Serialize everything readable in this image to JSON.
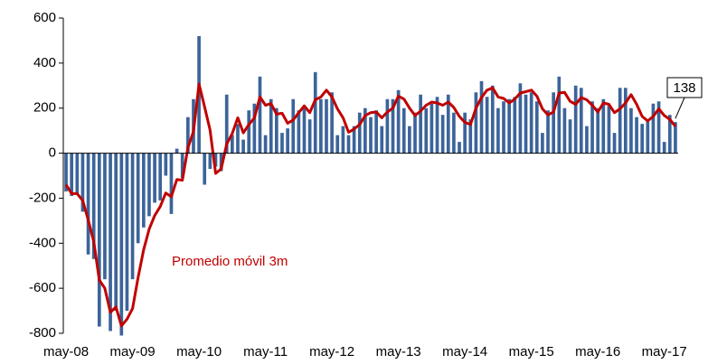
{
  "chart_data": {
    "type": "bar_line",
    "categories": [
      "may-08",
      null,
      null,
      null,
      null,
      null,
      null,
      null,
      null,
      null,
      null,
      null,
      "may-09",
      null,
      null,
      null,
      null,
      null,
      null,
      null,
      null,
      null,
      null,
      null,
      "may-10",
      null,
      null,
      null,
      null,
      null,
      null,
      null,
      null,
      null,
      null,
      null,
      "may-11",
      null,
      null,
      null,
      null,
      null,
      null,
      null,
      null,
      null,
      null,
      null,
      "may-12",
      null,
      null,
      null,
      null,
      null,
      null,
      null,
      null,
      null,
      null,
      null,
      "may-13",
      null,
      null,
      null,
      null,
      null,
      null,
      null,
      null,
      null,
      null,
      null,
      "may-14",
      null,
      null,
      null,
      null,
      null,
      null,
      null,
      null,
      null,
      null,
      null,
      "may-15",
      null,
      null,
      null,
      null,
      null,
      null,
      null,
      null,
      null,
      null,
      null,
      "may-16",
      null,
      null,
      null,
      null,
      null,
      null,
      null,
      null,
      null,
      null,
      null,
      "may-17",
      null,
      null
    ],
    "series": [
      {
        "type": "bar",
        "color": "#3c6499",
        "values": [
          -170,
          -190,
          -180,
          -260,
          -450,
          -470,
          -770,
          -560,
          -790,
          -700,
          -810,
          -700,
          -560,
          -400,
          -330,
          -280,
          -220,
          -210,
          -100,
          -270,
          20,
          -110,
          160,
          240,
          520,
          -140,
          -70,
          -60,
          -80,
          260,
          80,
          130,
          60,
          190,
          220,
          340,
          80,
          240,
          200,
          90,
          110,
          240,
          190,
          200,
          150,
          360,
          240,
          240,
          270,
          80,
          120,
          80,
          120,
          180,
          200,
          160,
          190,
          120,
          240,
          240,
          280,
          200,
          120,
          180,
          260,
          200,
          220,
          250,
          170,
          260,
          180,
          50,
          180,
          150,
          270,
          320,
          250,
          300,
          200,
          230,
          240,
          250,
          310,
          260,
          270,
          230,
          90,
          190,
          270,
          340,
          200,
          150,
          300,
          290,
          120,
          230,
          200,
          240,
          210,
          90,
          290,
          290,
          200,
          160,
          130,
          140,
          220,
          230,
          50,
          170,
          138
        ]
      },
      {
        "type": "line",
        "name": "Promedio móvil 3m",
        "color": "#c00000",
        "values": [
          -140,
          -180,
          -180,
          -210,
          -297,
          -393,
          -563,
          -600,
          -707,
          -683,
          -767,
          -737,
          -690,
          -553,
          -430,
          -337,
          -277,
          -237,
          -177,
          -193,
          -117,
          -120,
          23,
          97,
          307,
          207,
          103,
          -90,
          -70,
          40,
          87,
          157,
          90,
          127,
          157,
          250,
          213,
          220,
          173,
          177,
          133,
          147,
          180,
          210,
          180,
          237,
          250,
          280,
          250,
          197,
          157,
          93,
          107,
          127,
          167,
          180,
          183,
          157,
          183,
          200,
          253,
          240,
          200,
          167,
          187,
          213,
          227,
          223,
          213,
          227,
          203,
          163,
          137,
          127,
          200,
          247,
          280,
          290,
          250,
          243,
          223,
          240,
          267,
          273,
          280,
          253,
          197,
          170,
          183,
          267,
          270,
          230,
          217,
          247,
          237,
          213,
          183,
          223,
          217,
          180,
          197,
          223,
          260,
          217,
          163,
          143,
          163,
          197,
          167,
          150,
          119
        ]
      }
    ],
    "ylim": [
      -800,
      600
    ],
    "yticks": [
      -800,
      -600,
      -400,
      -200,
      0,
      200,
      400,
      600
    ]
  }
}
